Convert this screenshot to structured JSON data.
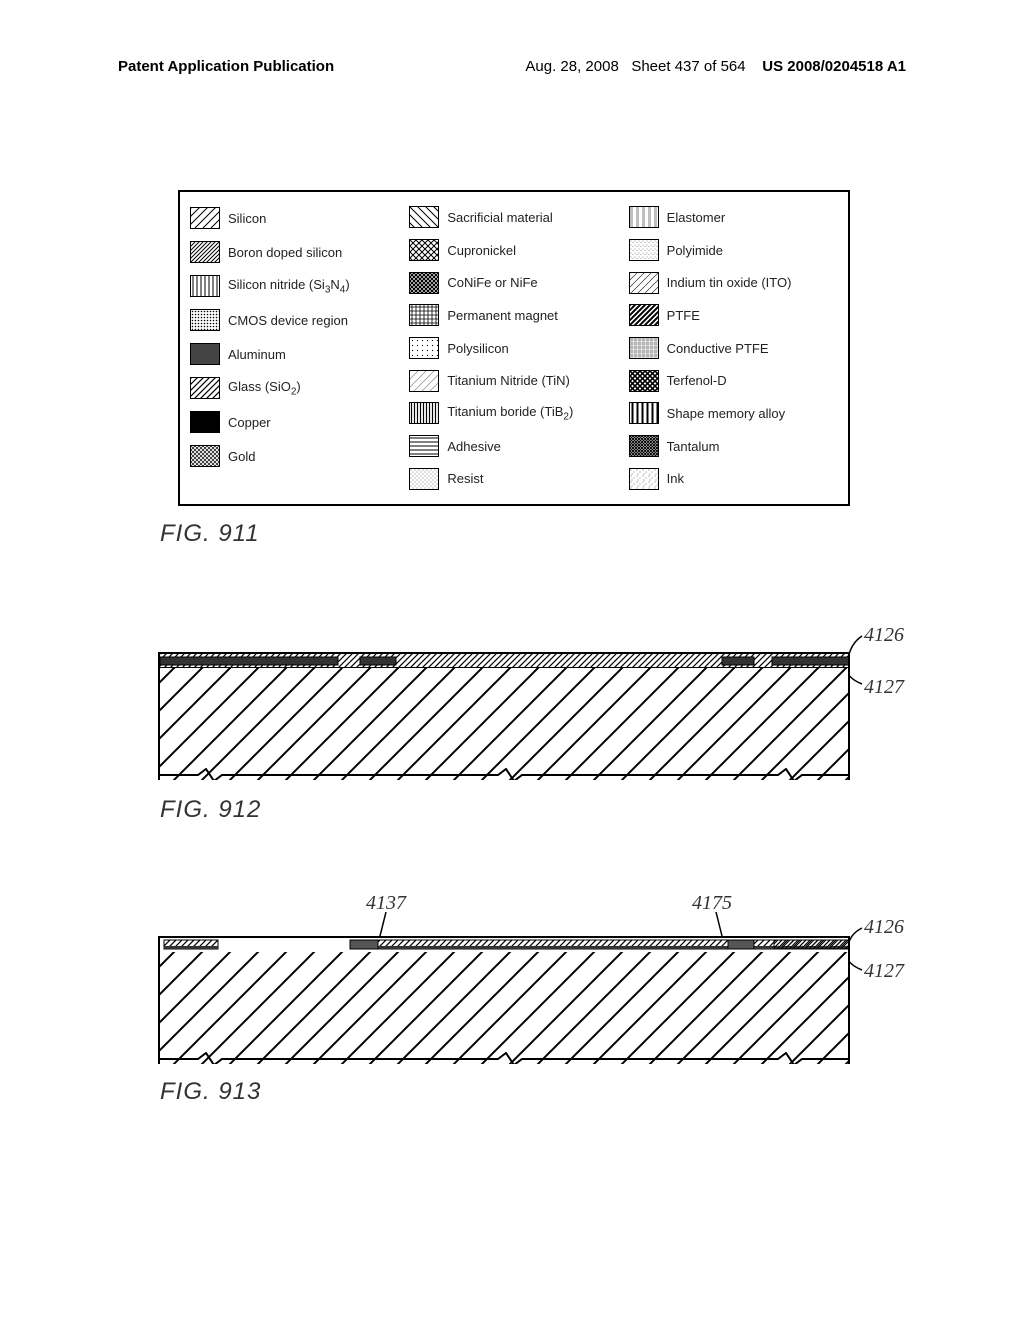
{
  "header": {
    "left": "Patent Application Publication",
    "date": "Aug. 28, 2008",
    "sheet": "Sheet 437 of 564",
    "pubno": "US 2008/0204518 A1"
  },
  "legend": {
    "col1": [
      {
        "label": "Silicon",
        "pattern": "diag-sparse"
      },
      {
        "label": "Boron doped silicon",
        "pattern": "diag-dense"
      },
      {
        "label": "Silicon nitride (Si3N4)",
        "pattern": "vert-lines",
        "sub3": true,
        "sub4": true
      },
      {
        "label": "CMOS device region",
        "pattern": "dots-dense"
      },
      {
        "label": "Aluminum",
        "pattern": "solid-dark"
      },
      {
        "label": "Glass (SiO2)",
        "pattern": "diag-med",
        "subO2": true
      },
      {
        "label": "Copper",
        "pattern": "solid-black"
      },
      {
        "label": "Gold",
        "pattern": "cross-fine"
      }
    ],
    "col2": [
      {
        "label": "Sacrificial material",
        "pattern": "diag-sparse-r"
      },
      {
        "label": "Cupronickel",
        "pattern": "cross-med"
      },
      {
        "label": "CoNiFe or NiFe",
        "pattern": "cross-dense"
      },
      {
        "label": "Permanent magnet",
        "pattern": "grid-fine"
      },
      {
        "label": "Polysilicon",
        "pattern": "dots-sparse"
      },
      {
        "label": "Titanium Nitride (TiN)",
        "pattern": "diag-vlight"
      },
      {
        "label": "Titanium boride (TiB2)",
        "pattern": "vert-dense",
        "subB2": true
      },
      {
        "label": "Adhesive",
        "pattern": "horiz-lines"
      },
      {
        "label": "Resist",
        "pattern": "dots-tiny"
      }
    ],
    "col3": [
      {
        "label": "Elastomer",
        "pattern": "horiz-dash"
      },
      {
        "label": "Polyimide",
        "pattern": "stipple"
      },
      {
        "label": "Indium tin oxide (ITO)",
        "pattern": "diag-thin"
      },
      {
        "label": "PTFE",
        "pattern": "diag-dark"
      },
      {
        "label": "Conductive PTFE",
        "pattern": "mesh"
      },
      {
        "label": "Terfenol-D",
        "pattern": "cross-heavy"
      },
      {
        "label": "Shape memory alloy",
        "pattern": "vert-thick"
      },
      {
        "label": "Tantalum",
        "pattern": "cross-tight"
      },
      {
        "label": "Ink",
        "pattern": "speckle"
      }
    ]
  },
  "figures": {
    "fig911": {
      "caption": "FIG. 911"
    },
    "fig912": {
      "caption": "FIG. 912",
      "refs": {
        "r1": "4126",
        "r2": "4127"
      }
    },
    "fig913": {
      "caption": "FIG. 913",
      "refs": {
        "r1": "4126",
        "r2": "4127",
        "r3": "4137",
        "r4": "4175"
      }
    }
  },
  "colors": {
    "line": "#000000",
    "text": "#222222",
    "bg": "#ffffff"
  }
}
